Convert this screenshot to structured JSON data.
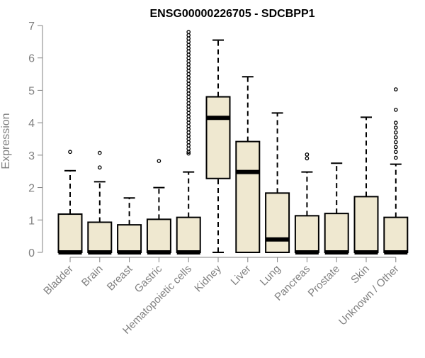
{
  "chart_data": {
    "type": "box",
    "title": "ENSG00000226705 - SDCBPP1",
    "xlabel": "",
    "ylabel": "Expression",
    "ylim": [
      0,
      7
    ],
    "yticks": [
      0,
      1,
      2,
      3,
      4,
      5,
      6,
      7
    ],
    "grid": false,
    "legend": "none",
    "colors": {
      "box_fill": "#efe8d0",
      "stroke": "#000000",
      "axis": "#808080",
      "label": "#808080"
    },
    "categories": [
      "Bladder",
      "Brain",
      "Breast",
      "Gastric",
      "Hematopoietic cells",
      "Kidney",
      "Liver",
      "Lung",
      "Pancreas",
      "Prostate",
      "Skin",
      "Unknown / Other"
    ],
    "boxes": [
      {
        "category": "Bladder",
        "min": 0,
        "q1": 0,
        "median": 0,
        "q3": 1.18,
        "max": 2.52,
        "outliers": [
          3.1
        ]
      },
      {
        "category": "Brain",
        "min": 0,
        "q1": 0,
        "median": 0,
        "q3": 0.93,
        "max": 2.18,
        "outliers": [
          2.62,
          3.07
        ]
      },
      {
        "category": "Breast",
        "min": 0,
        "q1": 0,
        "median": 0,
        "q3": 0.85,
        "max": 1.68,
        "outliers": []
      },
      {
        "category": "Gastric",
        "min": 0,
        "q1": 0,
        "median": 0,
        "q3": 1.02,
        "max": 2.0,
        "outliers": [
          2.82
        ]
      },
      {
        "category": "Hematopoietic cells",
        "min": 0,
        "q1": 0,
        "median": 0,
        "q3": 1.08,
        "max": 2.48,
        "outliers": [
          3.05,
          3.1,
          3.2,
          3.3,
          3.4,
          3.5,
          3.6,
          3.7,
          3.8,
          3.9,
          4.0,
          4.1,
          4.2,
          4.3,
          4.4,
          4.5,
          4.6,
          4.7,
          4.8,
          4.9,
          5.0,
          5.1,
          5.2,
          5.3,
          5.4,
          5.5,
          5.6,
          5.7,
          5.8,
          5.9,
          6.0,
          6.1,
          6.2,
          6.3,
          6.4,
          6.5,
          6.6,
          6.7,
          6.8
        ]
      },
      {
        "category": "Kidney",
        "min": 0,
        "q1": 2.28,
        "median": 4.15,
        "q3": 4.8,
        "max": 6.55,
        "outliers": []
      },
      {
        "category": "Liver",
        "min": 0,
        "q1": 0,
        "median": 2.48,
        "q3": 3.42,
        "max": 5.42,
        "outliers": []
      },
      {
        "category": "Lung",
        "min": 0,
        "q1": 0,
        "median": 0.4,
        "q3": 1.83,
        "max": 4.3,
        "outliers": []
      },
      {
        "category": "Pancreas",
        "min": 0,
        "q1": 0,
        "median": 0,
        "q3": 1.13,
        "max": 2.48,
        "outliers": [
          2.9,
          3.02
        ]
      },
      {
        "category": "Prostate",
        "min": 0,
        "q1": 0,
        "median": 0,
        "q3": 1.2,
        "max": 2.75,
        "outliers": []
      },
      {
        "category": "Skin",
        "min": 0,
        "q1": 0,
        "median": 0,
        "q3": 1.72,
        "max": 4.17,
        "outliers": []
      },
      {
        "category": "Unknown / Other",
        "min": 0,
        "q1": 0,
        "median": 0,
        "q3": 1.08,
        "max": 2.72,
        "outliers": [
          2.92,
          3.1,
          3.25,
          3.4,
          3.55,
          3.7,
          3.85,
          4.0,
          4.4,
          5.03
        ]
      }
    ]
  }
}
